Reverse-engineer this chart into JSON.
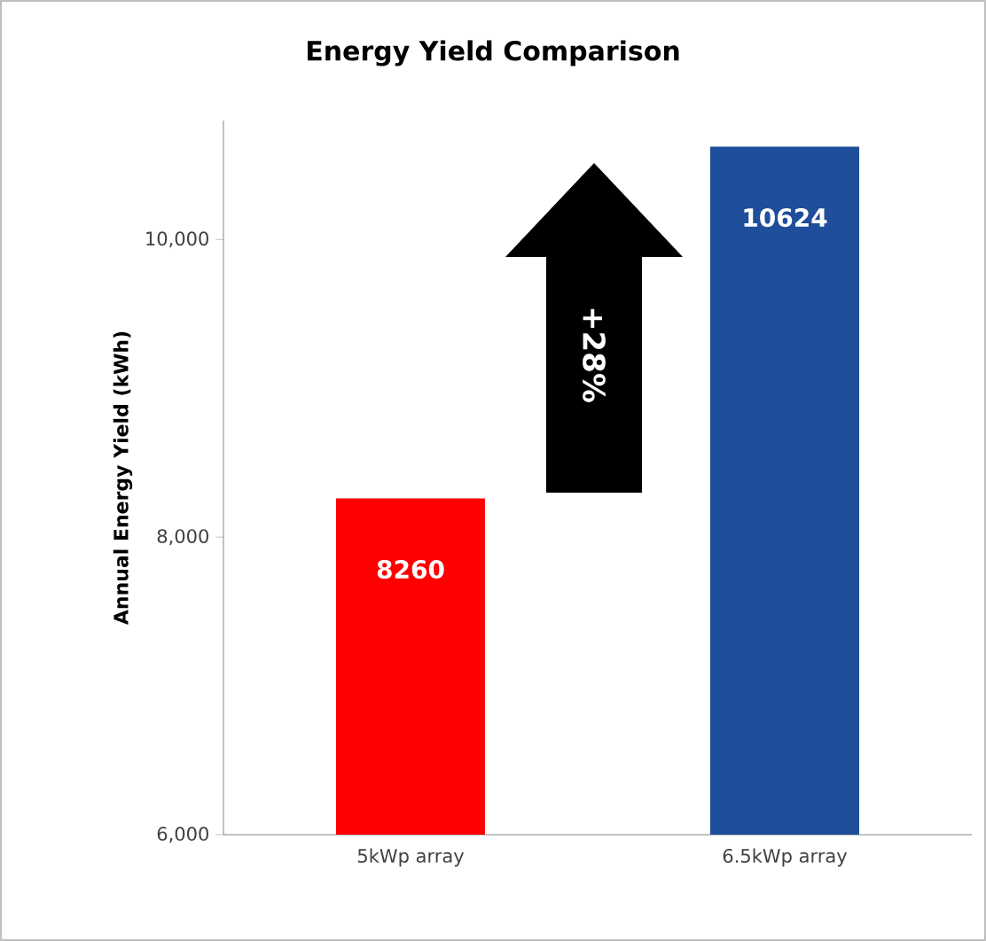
{
  "chart_data": {
    "type": "bar",
    "title": "Energy Yield Comparison",
    "ylabel": "Annual Energy Yield (kWh)",
    "categories": [
      "5kWp array",
      "6.5kWp array"
    ],
    "values": [
      8260,
      10624
    ],
    "colors": [
      "#ff0000",
      "#1f4e9a"
    ],
    "ylim": [
      6000,
      10800
    ],
    "yticks": [
      {
        "value": 6000,
        "label": "6,000"
      },
      {
        "value": 8000,
        "label": "8,000"
      },
      {
        "value": 10000,
        "label": "10,000"
      }
    ],
    "data_labels": true,
    "annotations": [
      "+28%"
    ]
  }
}
